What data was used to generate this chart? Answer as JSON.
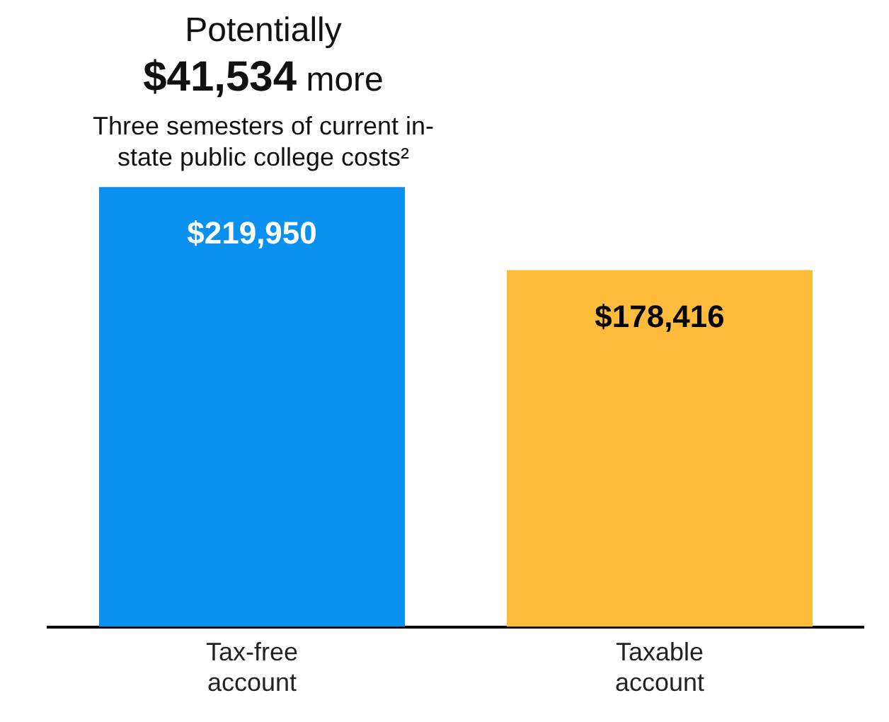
{
  "chart_data": {
    "type": "bar",
    "title": "Potentially",
    "subtitle": "$41,534 more",
    "annotations": [
      "Three semesters of current in-state public college costs²"
    ],
    "categories": [
      "Tax-free account",
      "Taxable account"
    ],
    "values": [
      219950,
      178416
    ],
    "colors": [
      "#0a91f0",
      "#fdbb3b"
    ],
    "value_labels": [
      "$219,950",
      "$178,416"
    ],
    "ylim": [
      0,
      220000
    ],
    "grid": false,
    "legend": false
  }
}
